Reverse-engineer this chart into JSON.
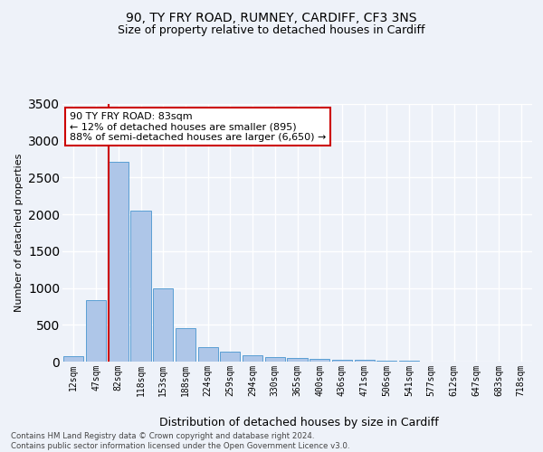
{
  "title_line1": "90, TY FRY ROAD, RUMNEY, CARDIFF, CF3 3NS",
  "title_line2": "Size of property relative to detached houses in Cardiff",
  "xlabel": "Distribution of detached houses by size in Cardiff",
  "ylabel": "Number of detached properties",
  "footnote": "Contains HM Land Registry data © Crown copyright and database right 2024.\nContains public sector information licensed under the Open Government Licence v3.0.",
  "bar_labels": [
    "12sqm",
    "47sqm",
    "82sqm",
    "118sqm",
    "153sqm",
    "188sqm",
    "224sqm",
    "259sqm",
    "294sqm",
    "330sqm",
    "365sqm",
    "400sqm",
    "436sqm",
    "471sqm",
    "506sqm",
    "541sqm",
    "577sqm",
    "612sqm",
    "647sqm",
    "683sqm",
    "718sqm"
  ],
  "bar_values": [
    75,
    840,
    2720,
    2050,
    1000,
    450,
    200,
    130,
    80,
    60,
    50,
    40,
    30,
    20,
    12,
    8,
    5,
    4,
    3,
    2,
    2
  ],
  "bar_color": "#aec6e8",
  "bar_edge_color": "#5a9fd4",
  "vline_x_index": 2,
  "vline_color": "#cc0000",
  "ylim": [
    0,
    3500
  ],
  "yticks": [
    0,
    500,
    1000,
    1500,
    2000,
    2500,
    3000,
    3500
  ],
  "annotation_text": "90 TY FRY ROAD: 83sqm\n← 12% of detached houses are smaller (895)\n88% of semi-detached houses are larger (6,650) →",
  "annotation_box_color": "#ffffff",
  "annotation_box_edge": "#cc0000",
  "background_color": "#eef2f9",
  "grid_color": "#ffffff",
  "title1_fontsize": 10,
  "title2_fontsize": 9,
  "ylabel_fontsize": 8,
  "xlabel_fontsize": 9,
  "tick_fontsize": 7,
  "annot_fontsize": 8
}
